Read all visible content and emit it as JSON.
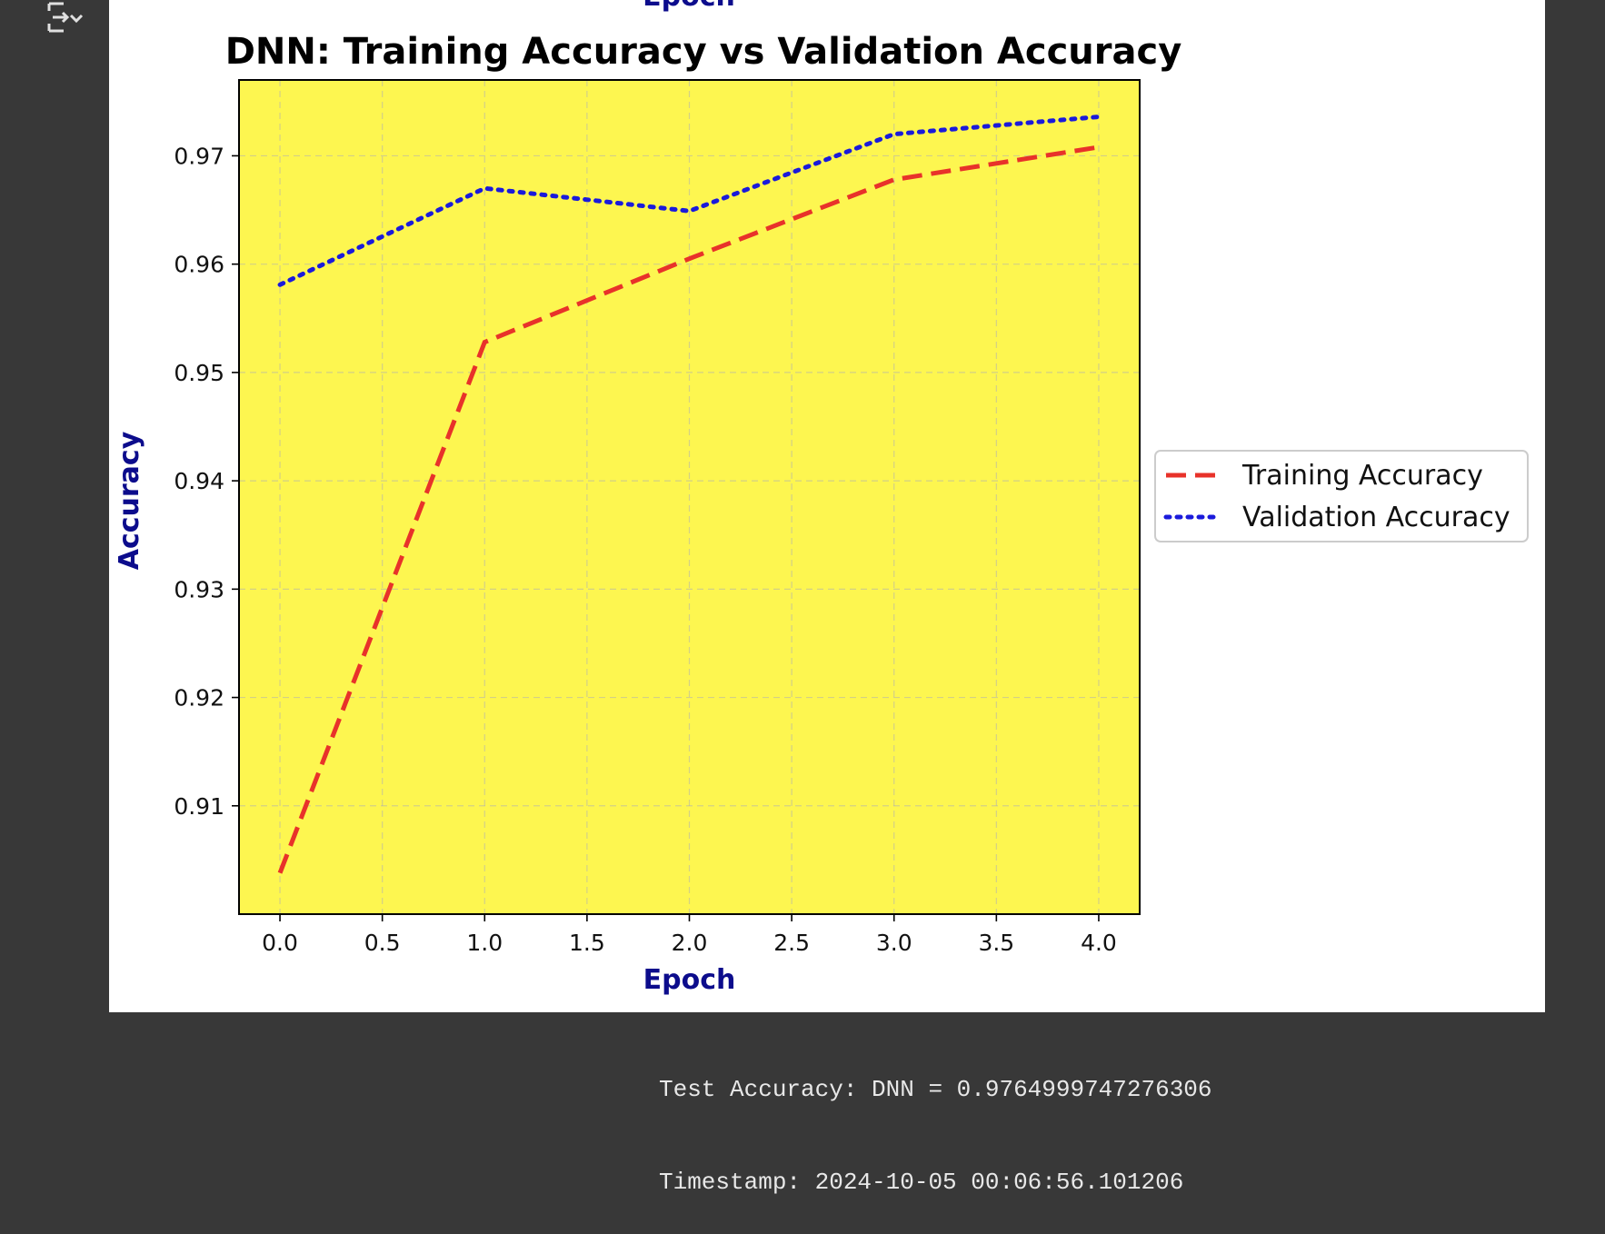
{
  "output_toggle_icon": "output-collapse-icon",
  "figure": {
    "top_cropped_label": "Epoch",
    "chart_data": {
      "type": "line",
      "title": "DNN: Training Accuracy vs Validation Accuracy",
      "xlabel": "Epoch",
      "ylabel": "Accuracy",
      "xlim": [
        -0.2,
        4.2
      ],
      "ylim": [
        0.9,
        0.977
      ],
      "xticks": [
        0.0,
        0.5,
        1.0,
        1.5,
        2.0,
        2.5,
        3.0,
        3.5,
        4.0
      ],
      "xtick_labels": [
        "0.0",
        "0.5",
        "1.0",
        "1.5",
        "2.0",
        "2.5",
        "3.0",
        "3.5",
        "4.0"
      ],
      "yticks": [
        0.91,
        0.92,
        0.93,
        0.94,
        0.95,
        0.96,
        0.97
      ],
      "ytick_labels": [
        "0.91",
        "0.92",
        "0.93",
        "0.94",
        "0.95",
        "0.96",
        "0.97"
      ],
      "grid": true,
      "background": "#fdf650",
      "legend_position": "center-right-outside",
      "series": [
        {
          "name": "Training Accuracy",
          "color": "#e8322a",
          "style": "dashed",
          "x": [
            0,
            1,
            2,
            3,
            4
          ],
          "y": [
            0.9038,
            0.9528,
            0.9605,
            0.9678,
            0.9708
          ]
        },
        {
          "name": "Validation Accuracy",
          "color": "#1a1adb",
          "style": "dotted",
          "x": [
            0,
            1,
            2,
            3,
            4
          ],
          "y": [
            0.9581,
            0.967,
            0.9649,
            0.972,
            0.9736
          ]
        }
      ]
    }
  },
  "output": {
    "test_accuracy_line": "Test Accuracy: DNN = 0.9764999747276306",
    "timestamp_line": "Timestamp: 2024-10-05 00:06:56.101206"
  }
}
